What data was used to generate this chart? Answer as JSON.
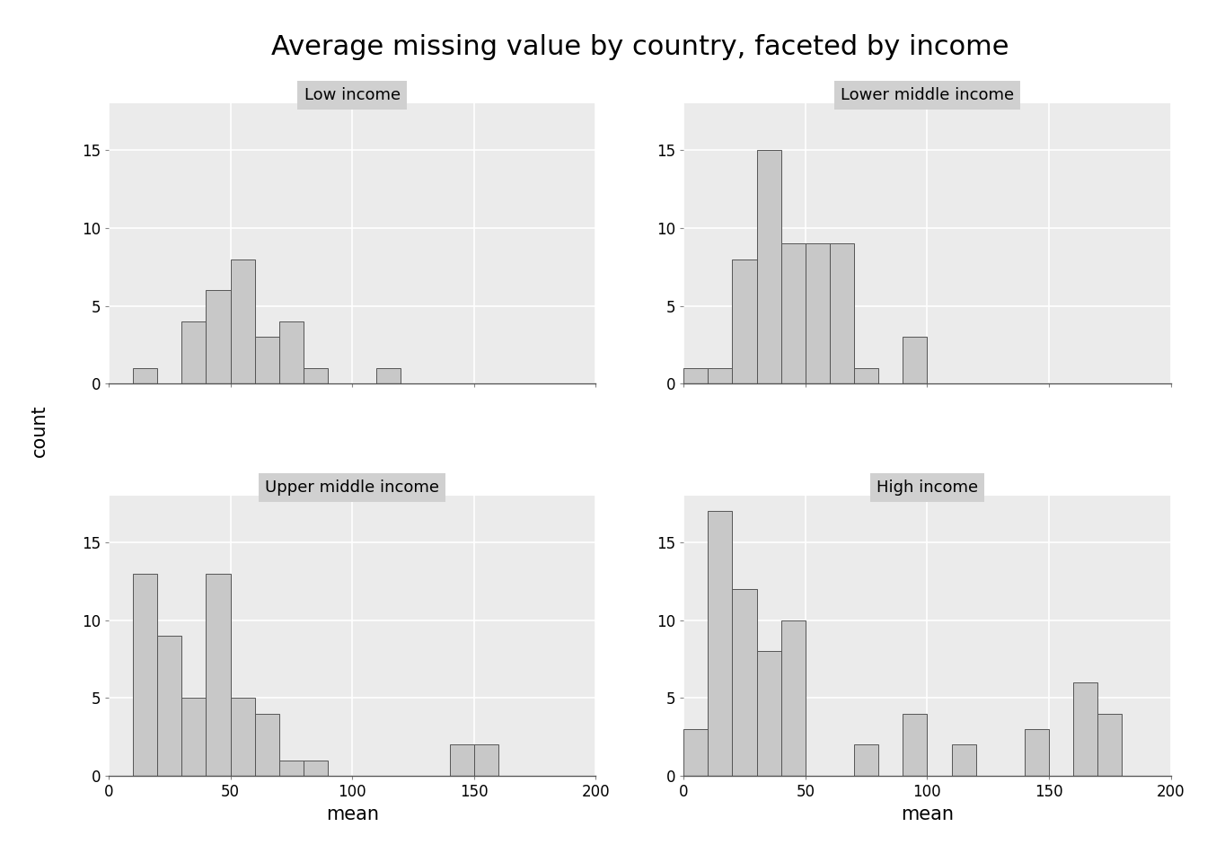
{
  "title": "Average missing value by country, faceted by income",
  "panels": [
    {
      "label": "Low income",
      "bin_edges": [
        0,
        10,
        20,
        30,
        40,
        50,
        60,
        70,
        80,
        90,
        100,
        110,
        120,
        130,
        140,
        150,
        160,
        170,
        180,
        190,
        200
      ],
      "counts": [
        0,
        1,
        0,
        4,
        6,
        8,
        3,
        4,
        1,
        0,
        0,
        1,
        0,
        0,
        0,
        0,
        0,
        0,
        0,
        0
      ]
    },
    {
      "label": "Lower middle income",
      "bin_edges": [
        0,
        10,
        20,
        30,
        40,
        50,
        60,
        70,
        80,
        90,
        100,
        110,
        120,
        130,
        140,
        150,
        160,
        170,
        180,
        190,
        200
      ],
      "counts": [
        1,
        1,
        8,
        15,
        9,
        9,
        9,
        1,
        0,
        3,
        0,
        0,
        0,
        0,
        0,
        0,
        0,
        0,
        0,
        0
      ]
    },
    {
      "label": "Upper middle income",
      "bin_edges": [
        0,
        10,
        20,
        30,
        40,
        50,
        60,
        70,
        80,
        90,
        100,
        110,
        120,
        130,
        140,
        150,
        160,
        170,
        180,
        190,
        200
      ],
      "counts": [
        0,
        13,
        9,
        5,
        13,
        5,
        4,
        1,
        1,
        0,
        0,
        0,
        0,
        0,
        2,
        2,
        0,
        0,
        0,
        0
      ]
    },
    {
      "label": "High income",
      "bin_edges": [
        0,
        10,
        20,
        30,
        40,
        50,
        60,
        70,
        80,
        90,
        100,
        110,
        120,
        130,
        140,
        150,
        160,
        170,
        180,
        190,
        200
      ],
      "counts": [
        3,
        17,
        12,
        8,
        10,
        0,
        0,
        2,
        0,
        4,
        0,
        2,
        0,
        0,
        3,
        0,
        6,
        4,
        0,
        0
      ]
    }
  ],
  "xlabel": "mean",
  "ylabel": "count",
  "xlim": [
    0,
    200
  ],
  "ylim": [
    0,
    18
  ],
  "yticks": [
    0,
    5,
    10,
    15
  ],
  "xticks": [
    0,
    50,
    100,
    150,
    200
  ],
  "bar_color": "#c8c8c8",
  "bar_edgecolor": "#555555",
  "panel_bg": "#ebebeb",
  "strip_bg": "#d0d0d0",
  "fig_bg": "#ffffff",
  "grid_color": "#ffffff",
  "title_fontsize": 22,
  "label_fontsize": 15,
  "tick_fontsize": 12,
  "strip_fontsize": 13
}
